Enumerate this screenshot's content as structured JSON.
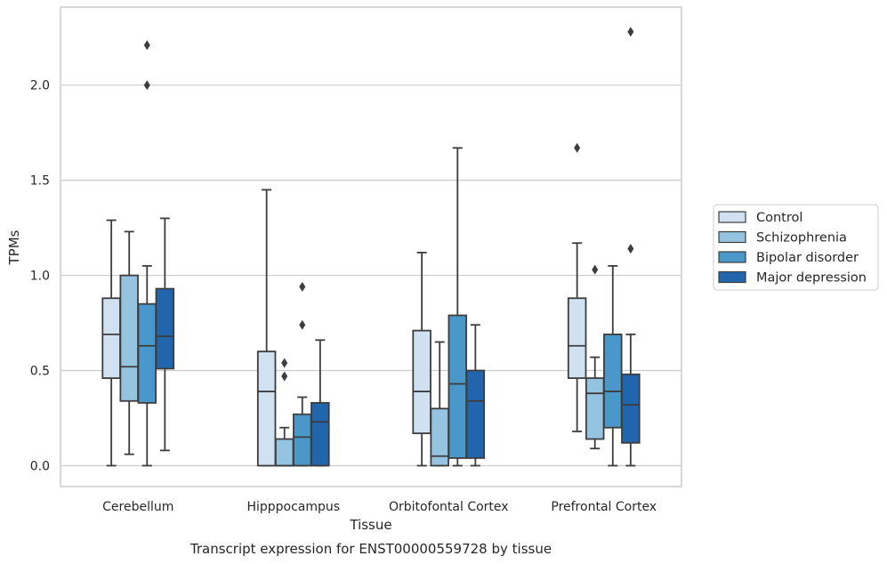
{
  "chart_data": {
    "type": "box",
    "xlabel": "Tissue",
    "ylabel": "TPMs",
    "caption": "Transcript expression for ENST00000559728 by tissue",
    "ylim": [
      -0.11,
      2.41
    ],
    "yticks": [
      0.0,
      0.5,
      1.0,
      1.5,
      2.0
    ],
    "ytick_labels": [
      "0.0",
      "0.5",
      "1.0",
      "1.5",
      "2.0"
    ],
    "grid": "horizontal",
    "legend_position": "right",
    "categories": [
      "Cerebellum",
      "Hipppocampus",
      "Orbitofontal Cortex",
      "Prefrontal Cortex"
    ],
    "series": [
      {
        "name": "Control",
        "color": "#d0e1f2",
        "boxes": [
          {
            "whislo": 0.0,
            "q1": 0.46,
            "med": 0.69,
            "q3": 0.88,
            "whishi": 1.29,
            "fliers": []
          },
          {
            "whislo": 0.0,
            "q1": 0.0,
            "med": 0.39,
            "q3": 0.6,
            "whishi": 1.45,
            "fliers": []
          },
          {
            "whislo": 0.0,
            "q1": 0.17,
            "med": 0.39,
            "q3": 0.71,
            "whishi": 1.12,
            "fliers": []
          },
          {
            "whislo": 0.18,
            "q1": 0.46,
            "med": 0.63,
            "q3": 0.88,
            "whishi": 1.17,
            "fliers": [
              1.67
            ]
          }
        ]
      },
      {
        "name": "Schizophrenia",
        "color": "#94c4df",
        "boxes": [
          {
            "whislo": 0.06,
            "q1": 0.34,
            "med": 0.52,
            "q3": 1.0,
            "whishi": 1.23,
            "fliers": []
          },
          {
            "whislo": 0.0,
            "q1": 0.0,
            "med": 0.0,
            "q3": 0.14,
            "whishi": 0.2,
            "fliers": [
              0.47,
              0.54
            ]
          },
          {
            "whislo": 0.0,
            "q1": 0.0,
            "med": 0.05,
            "q3": 0.3,
            "whishi": 0.65,
            "fliers": []
          },
          {
            "whislo": 0.09,
            "q1": 0.14,
            "med": 0.38,
            "q3": 0.46,
            "whishi": 0.57,
            "fliers": [
              1.03
            ]
          }
        ]
      },
      {
        "name": "Bipolar disorder",
        "color": "#4a98c9",
        "boxes": [
          {
            "whislo": 0.0,
            "q1": 0.33,
            "med": 0.63,
            "q3": 0.85,
            "whishi": 1.05,
            "fliers": [
              2.0,
              2.21
            ]
          },
          {
            "whislo": 0.0,
            "q1": 0.0,
            "med": 0.15,
            "q3": 0.27,
            "whishi": 0.36,
            "fliers": [
              0.74,
              0.94
            ]
          },
          {
            "whislo": 0.0,
            "q1": 0.04,
            "med": 0.43,
            "q3": 0.79,
            "whishi": 1.67,
            "fliers": []
          },
          {
            "whislo": 0.0,
            "q1": 0.2,
            "med": 0.39,
            "q3": 0.69,
            "whishi": 1.05,
            "fliers": []
          }
        ]
      },
      {
        "name": "Major depression",
        "color": "#2166ac",
        "boxes": [
          {
            "whislo": 0.08,
            "q1": 0.51,
            "med": 0.68,
            "q3": 0.93,
            "whishi": 1.3,
            "fliers": []
          },
          {
            "whislo": 0.0,
            "q1": 0.0,
            "med": 0.23,
            "q3": 0.33,
            "whishi": 0.66,
            "fliers": []
          },
          {
            "whislo": 0.0,
            "q1": 0.04,
            "med": 0.34,
            "q3": 0.5,
            "whishi": 0.74,
            "fliers": []
          },
          {
            "whislo": 0.0,
            "q1": 0.12,
            "med": 0.32,
            "q3": 0.48,
            "whishi": 0.69,
            "fliers": [
              1.14,
              2.28
            ]
          }
        ]
      }
    ]
  }
}
